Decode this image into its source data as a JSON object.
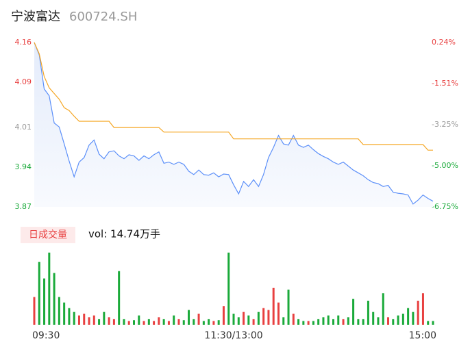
{
  "chart_data": [
    {
      "type": "line",
      "title": "宁波富达",
      "subtitle": "600724.SH",
      "x": [
        0,
        3,
        6,
        9,
        12,
        15,
        18,
        21,
        24,
        27,
        30,
        33,
        36,
        39,
        42,
        45,
        48,
        51,
        54,
        57,
        60,
        63,
        66,
        69,
        72,
        75,
        78,
        81,
        84,
        87,
        90,
        93,
        96,
        99,
        102,
        105,
        108,
        111,
        114,
        117,
        120,
        123,
        126,
        129,
        132,
        135,
        138,
        141,
        144,
        147,
        150,
        153,
        156,
        159,
        162,
        165,
        168,
        171,
        174,
        177,
        180,
        183,
        186,
        189,
        192,
        195,
        198,
        201,
        204,
        207,
        210,
        213,
        216,
        219,
        222,
        225,
        228,
        231,
        234,
        237,
        240
      ],
      "xlim": [
        0,
        240
      ],
      "ylim": [
        3.87,
        4.16
      ],
      "yticks": [
        4.16,
        4.09,
        4.01,
        3.94,
        3.87
      ],
      "y2lim": [
        -6.75,
        0.24
      ],
      "y2ticks": [
        {
          "value": 0.24,
          "label": "0.24%"
        },
        {
          "value": -1.51,
          "label": "-1.51%"
        },
        {
          "value": -3.25,
          "label": "-3.25%"
        },
        {
          "value": -5.0,
          "label": "-5.00%"
        },
        {
          "value": -6.75,
          "label": "-6.75%"
        }
      ],
      "series": [
        {
          "color": "#5b8ff9",
          "values": [
            4.16,
            4.138,
            4.078,
            4.066,
            4.018,
            4.011,
            3.981,
            3.951,
            3.923,
            3.949,
            3.957,
            3.979,
            3.988,
            3.963,
            3.955,
            3.967,
            3.969,
            3.96,
            3.955,
            3.962,
            3.96,
            3.952,
            3.96,
            3.955,
            3.962,
            3.967,
            3.947,
            3.949,
            3.945,
            3.949,
            3.945,
            3.933,
            3.927,
            3.935,
            3.927,
            3.926,
            3.93,
            3.923,
            3.928,
            3.927,
            3.909,
            3.893,
            3.915,
            3.906,
            3.918,
            3.906,
            3.927,
            3.957,
            3.975,
            3.996,
            3.981,
            3.979,
            3.996,
            3.979,
            3.975,
            3.979,
            3.971,
            3.964,
            3.959,
            3.955,
            3.949,
            3.945,
            3.949,
            3.942,
            3.935,
            3.93,
            3.925,
            3.918,
            3.913,
            3.911,
            3.906,
            3.908,
            3.896,
            3.894,
            3.893,
            3.891,
            3.875,
            3.882,
            3.891,
            3.885,
            3.88
          ]
        },
        {
          "color": "#f5a623",
          "values": [
            4.16,
            4.14,
            4.1,
            4.08,
            4.07,
            4.06,
            4.045,
            4.04,
            4.03,
            4.021,
            4.021,
            4.021,
            4.021,
            4.021,
            4.021,
            4.021,
            4.01,
            4.01,
            4.01,
            4.01,
            4.01,
            4.01,
            4.01,
            4.01,
            4.01,
            4.01,
            4.002,
            4.002,
            4.002,
            4.002,
            4.002,
            4.002,
            4.002,
            4.002,
            4.002,
            4.002,
            4.002,
            4.002,
            4.002,
            4.002,
            3.99,
            3.99,
            3.99,
            3.99,
            3.99,
            3.99,
            3.99,
            3.99,
            3.99,
            3.99,
            3.99,
            3.99,
            3.99,
            3.99,
            3.99,
            3.99,
            3.99,
            3.99,
            3.99,
            3.99,
            3.99,
            3.99,
            3.99,
            3.99,
            3.99,
            3.99,
            3.98,
            3.98,
            3.98,
            3.98,
            3.98,
            3.98,
            3.98,
            3.98,
            3.98,
            3.98,
            3.98,
            3.98,
            3.98,
            3.97,
            3.97
          ]
        }
      ]
    },
    {
      "type": "bar",
      "title": "日成交量",
      "subtitle": "vol: 14.74万手",
      "x": [
        0,
        3,
        6,
        9,
        12,
        15,
        18,
        21,
        24,
        27,
        30,
        33,
        36,
        39,
        42,
        45,
        48,
        51,
        54,
        57,
        60,
        63,
        66,
        69,
        72,
        75,
        78,
        81,
        84,
        87,
        90,
        93,
        96,
        99,
        102,
        105,
        108,
        111,
        114,
        117,
        120,
        123,
        126,
        129,
        132,
        135,
        138,
        141,
        144,
        147,
        150,
        153,
        156,
        159,
        162,
        165,
        168,
        171,
        174,
        177,
        180,
        183,
        186,
        189,
        192,
        195,
        198,
        201,
        204,
        207,
        210,
        213,
        216,
        219,
        222,
        225,
        228,
        231,
        234,
        237,
        240
      ],
      "xlim": [
        0,
        240
      ],
      "xticks": [
        {
          "value": 0,
          "label": "09:30"
        },
        {
          "value": 120,
          "label": "11:30/13:00"
        },
        {
          "value": 240,
          "label": "15:00"
        }
      ],
      "ylim": [
        0,
        4000
      ],
      "values": [
        1500,
        3400,
        2500,
        3900,
        2800,
        1500,
        1200,
        900,
        700,
        500,
        600,
        400,
        500,
        300,
        700,
        400,
        300,
        2900,
        300,
        200,
        250,
        500,
        200,
        300,
        200,
        400,
        300,
        200,
        500,
        300,
        250,
        800,
        300,
        600,
        200,
        300,
        200,
        250,
        1000,
        3900,
        600,
        400,
        700,
        500,
        300,
        700,
        900,
        800,
        2000,
        1200,
        400,
        1900,
        600,
        300,
        200,
        200,
        200,
        300,
        400,
        500,
        300,
        500,
        300,
        400,
        1400,
        300,
        300,
        1300,
        700,
        400,
        1700,
        400,
        300,
        500,
        600,
        900,
        700,
        1300,
        1700,
        200,
        200
      ],
      "colors": [
        "#e84040",
        "#1aaa3a"
      ]
    }
  ]
}
